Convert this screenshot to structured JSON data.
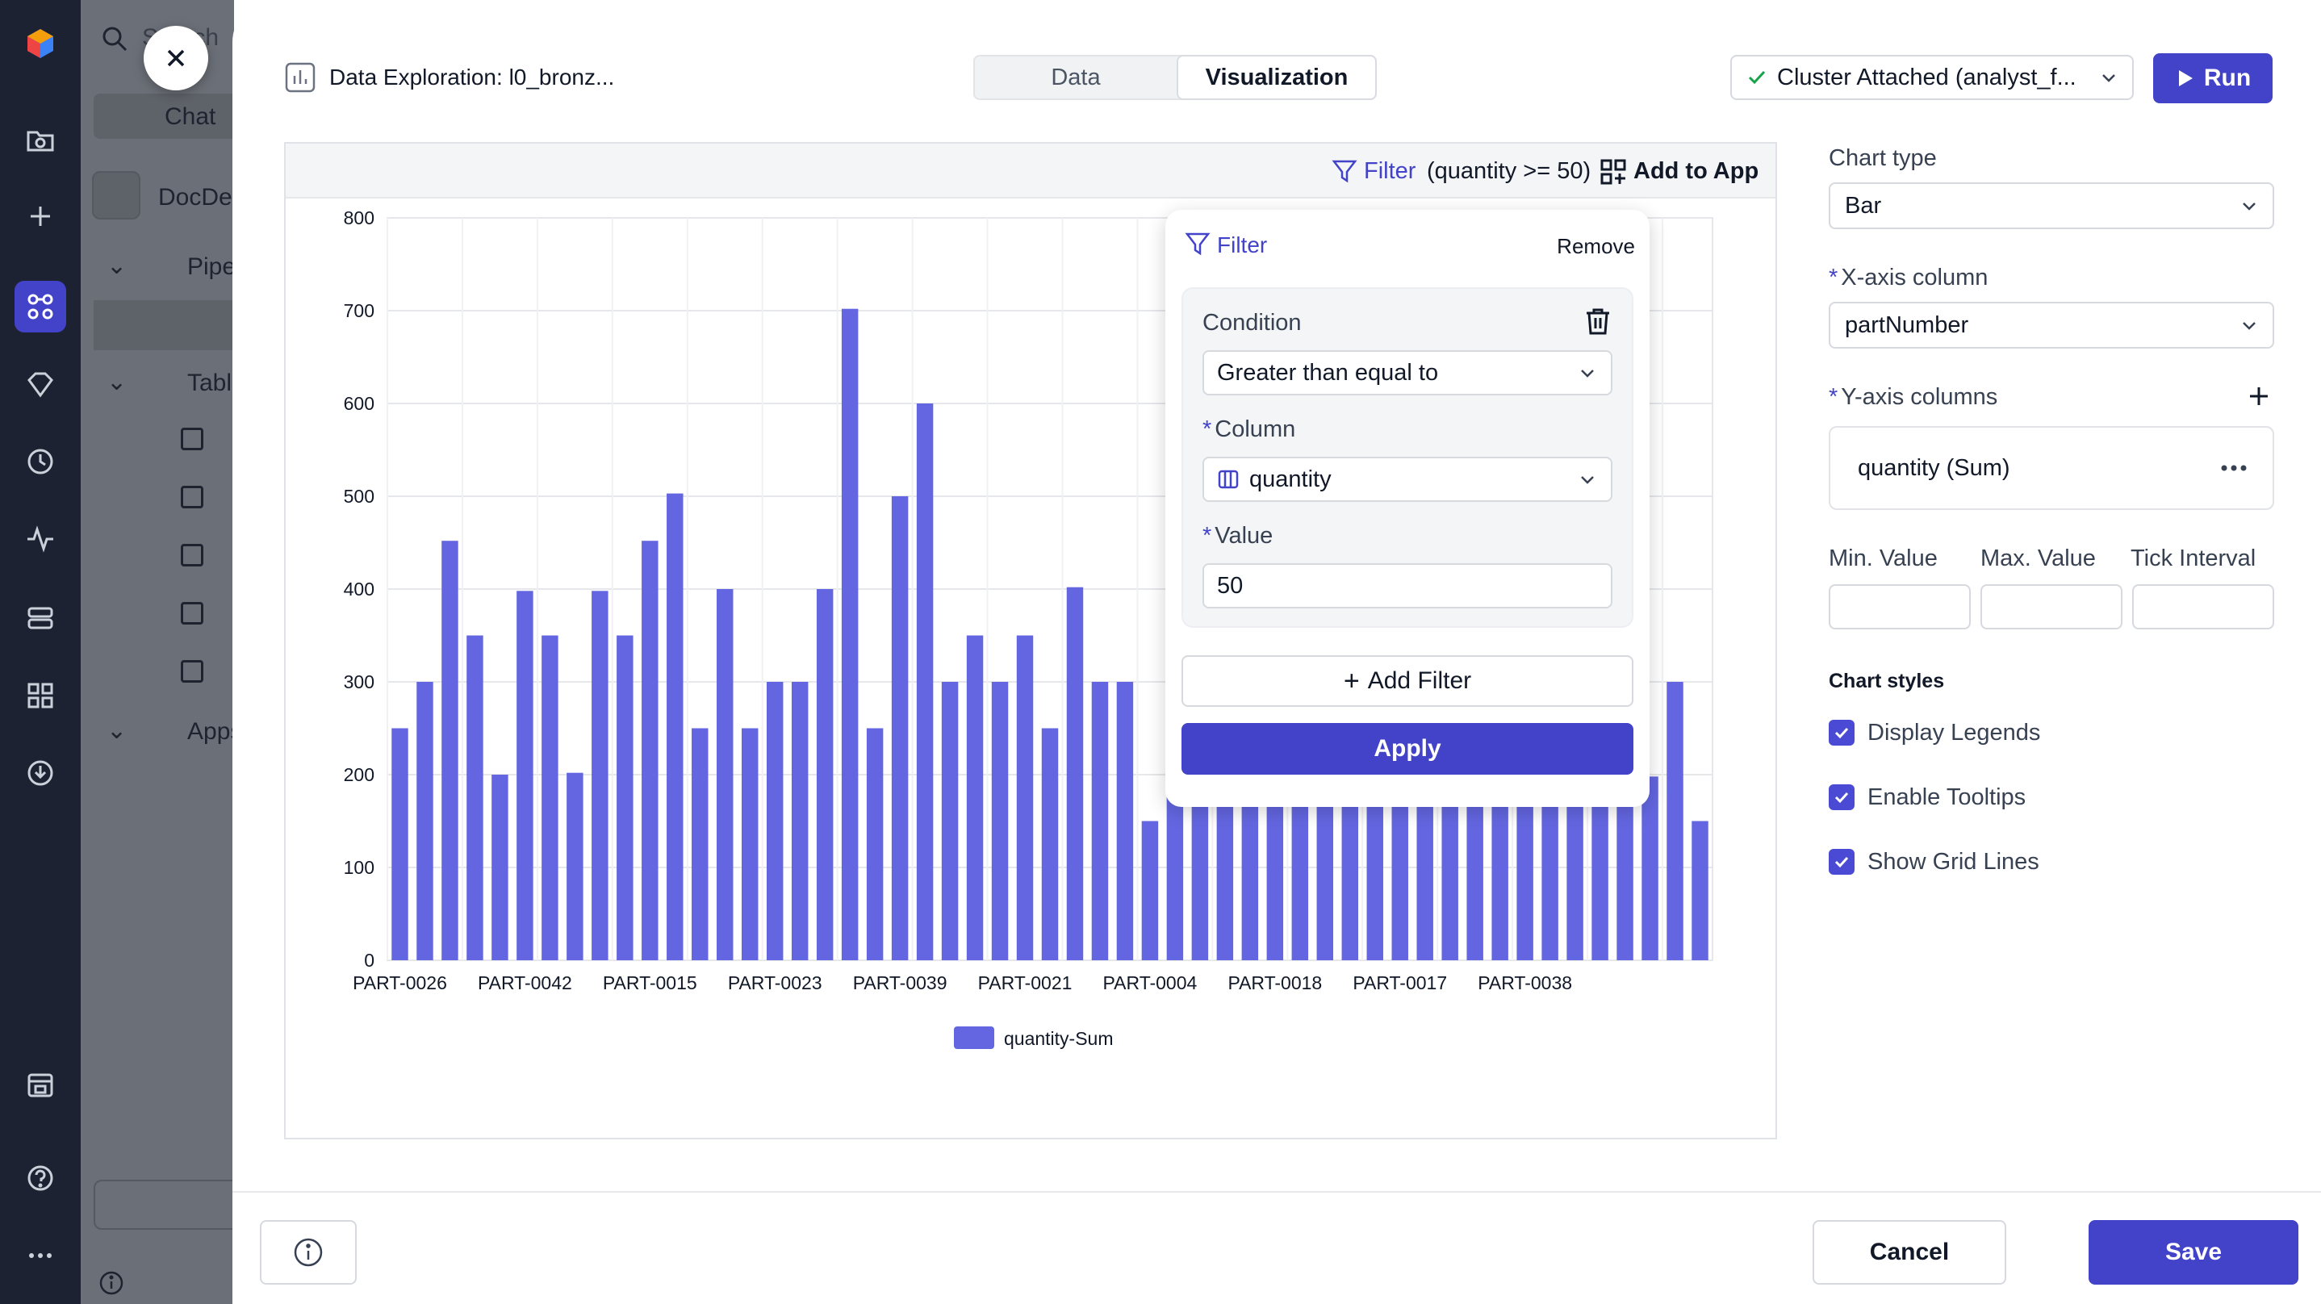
{
  "sidebar_bg": {
    "search_placeholder": "Search",
    "chat_label": "Chat",
    "project_label": "DocDen",
    "pipelines_label": "Pipelines",
    "tables_label": "Tables",
    "apps_label": "Apps"
  },
  "header": {
    "title": "Data Exploration: l0_bronz...",
    "tabs": [
      "Data",
      "Visualization"
    ],
    "active_tab": "Visualization",
    "cluster_label": "Cluster Attached (analyst_f...",
    "run_label": "Run"
  },
  "toolbar": {
    "filter_label": "Filter",
    "filter_summary": "(quantity >= 50)",
    "add_to_app_label": "Add to App"
  },
  "filter_popover": {
    "title": "Filter",
    "remove_label": "Remove",
    "condition_label": "Condition",
    "condition_value": "Greater than equal to",
    "column_label": "Column",
    "column_value": "quantity",
    "value_label": "Value",
    "value": "50",
    "add_filter_label": "Add Filter",
    "apply_label": "Apply"
  },
  "settings": {
    "chart_type_label": "Chart type",
    "chart_type_value": "Bar",
    "x_axis_label": "X-axis column",
    "x_axis_value": "partNumber",
    "y_axis_label": "Y-axis columns",
    "y_axis_item": "quantity (Sum)",
    "min_label": "Min. Value",
    "max_label": "Max. Value",
    "tick_label": "Tick Interval",
    "styles_title": "Chart styles",
    "display_legends": "Display Legends",
    "enable_tooltips": "Enable Tooltips",
    "show_grid_lines": "Show Grid Lines"
  },
  "footer": {
    "cancel_label": "Cancel",
    "save_label": "Save"
  },
  "colors": {
    "accent": "#4343c9",
    "bar": "#6366e0"
  },
  "chart_data": {
    "type": "bar",
    "ylim": [
      0,
      800
    ],
    "yticks": [
      0,
      100,
      200,
      300,
      400,
      500,
      600,
      700,
      800
    ],
    "x_tick_labels": [
      "PART-0026",
      "PART-0042",
      "PART-0015",
      "PART-0023",
      "PART-0039",
      "PART-0021",
      "PART-0004",
      "PART-0018",
      "PART-0017",
      "PART-0038"
    ],
    "values": [
      250,
      300,
      452,
      350,
      200,
      398,
      350,
      202,
      398,
      350,
      452,
      503,
      250,
      400,
      250,
      300,
      300,
      400,
      702,
      250,
      500,
      600,
      300,
      350,
      300,
      350,
      250,
      402,
      300,
      300,
      150,
      250,
      300,
      300,
      250,
      250,
      250,
      300,
      250,
      300,
      250,
      300,
      250,
      250,
      250,
      250,
      250,
      250,
      250,
      250,
      198,
      300,
      150
    ],
    "series": [
      {
        "name": "quantity-Sum"
      }
    ],
    "grid": true,
    "legend": "bottom"
  }
}
